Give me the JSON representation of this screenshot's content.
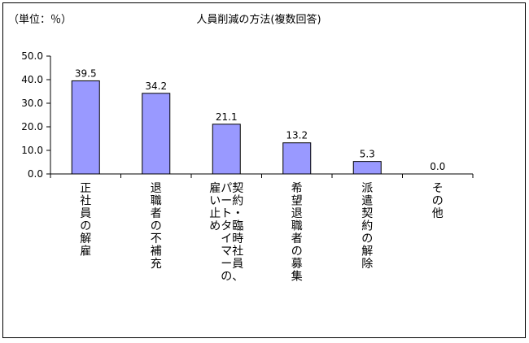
{
  "chart_data": {
    "type": "bar",
    "title": "人員削減の方法(複数回答)",
    "unit_label": "（単位：％）",
    "ylim": [
      0,
      50
    ],
    "y_ticks": [
      "50.0",
      "40.0",
      "30.0",
      "20.0",
      "10.0",
      "0.0"
    ],
    "y_tick_values": [
      50,
      40,
      30,
      20,
      10,
      0
    ],
    "categories": [
      "正社員の解雇",
      "退職者の不補充",
      "契約・臨時社員、パートタイマーの雇い止め",
      "希望退職者の募集",
      "派遣契約の解除",
      "その他"
    ],
    "category_columns": [
      [
        "正社員の解雇"
      ],
      [
        "退職者の不補充"
      ],
      [
        "契約・臨時社員、",
        "パートタイマーの",
        "雇い止め"
      ],
      [
        "希望退職者の募集"
      ],
      [
        "派遣契約の解除"
      ],
      [
        "その他"
      ]
    ],
    "values": [
      39.5,
      34.2,
      21.1,
      13.2,
      5.3,
      0.0
    ],
    "value_labels": [
      "39.5",
      "34.2",
      "21.1",
      "13.2",
      "5.3",
      "0.0"
    ],
    "colors": {
      "bar_fill": "#9999ff",
      "bar_stroke": "#000000",
      "axis": "#000000"
    },
    "grid": false,
    "legend": "none"
  }
}
